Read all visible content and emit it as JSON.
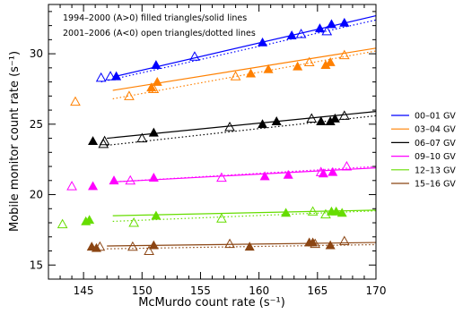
{
  "chart_data": {
    "type": "scatter",
    "xlabel": "McMurdo count rate (s⁻¹)",
    "ylabel": "Mobile monitor count rate (s⁻¹)",
    "xlim": [
      142,
      170
    ],
    "ylim": [
      14,
      33.5
    ],
    "xticks": [
      145,
      150,
      155,
      160,
      165,
      170
    ],
    "yticks": [
      15,
      20,
      25,
      30
    ],
    "grid": false,
    "legend_position": "right",
    "annotations": [
      "1994–2000 (A>0) filled triangles/solid lines",
      "2001–2006 (A<0) open triangles/dotted lines"
    ],
    "series": [
      {
        "name": "00–01 GV",
        "color": "#0000ff",
        "filled": [
          [
            147.8,
            28.4
          ],
          [
            151.2,
            29.2
          ],
          [
            160.3,
            30.8
          ],
          [
            162.8,
            31.3
          ],
          [
            165.2,
            31.8
          ],
          [
            166.2,
            32.1
          ],
          [
            167.3,
            32.2
          ]
        ],
        "open": [
          [
            146.5,
            28.3
          ],
          [
            147.3,
            28.4
          ],
          [
            154.5,
            29.8
          ],
          [
            163.6,
            31.4
          ],
          [
            165.8,
            31.6
          ]
        ],
        "solid_line": [
          [
            147.5,
            28.35
          ],
          [
            170,
            32.7
          ]
        ],
        "dotted_line": [
          [
            146.5,
            28.0
          ],
          [
            170,
            32.4
          ]
        ]
      },
      {
        "name": "03–04 GV",
        "color": "#ff8000",
        "filled": [
          [
            150.8,
            27.6
          ],
          [
            151.3,
            28.0
          ],
          [
            159.3,
            28.6
          ],
          [
            160.8,
            28.9
          ],
          [
            163.3,
            29.1
          ],
          [
            165.7,
            29.2
          ],
          [
            166.1,
            29.4
          ]
        ],
        "open": [
          [
            144.3,
            26.6
          ],
          [
            148.9,
            27.0
          ],
          [
            151.0,
            27.5
          ],
          [
            158.0,
            28.4
          ],
          [
            164.3,
            29.4
          ],
          [
            167.3,
            29.9
          ]
        ],
        "solid_line": [
          [
            147.5,
            27.4
          ],
          [
            170,
            30.4
          ]
        ],
        "dotted_line": [
          [
            147.5,
            26.8
          ],
          [
            170,
            30.2
          ]
        ]
      },
      {
        "name": "06–07 GV",
        "color": "#000000",
        "filled": [
          [
            145.8,
            23.8
          ],
          [
            151.0,
            24.4
          ],
          [
            160.3,
            25.0
          ],
          [
            161.5,
            25.2
          ],
          [
            165.3,
            25.2
          ],
          [
            166.1,
            25.2
          ],
          [
            166.5,
            25.4
          ]
        ],
        "open": [
          [
            146.7,
            23.6
          ],
          [
            146.8,
            23.8
          ],
          [
            150.0,
            24.0
          ],
          [
            157.5,
            24.8
          ],
          [
            164.5,
            25.4
          ],
          [
            167.3,
            25.6
          ]
        ],
        "solid_line": [
          [
            147.0,
            24.0
          ],
          [
            170,
            25.9
          ]
        ],
        "dotted_line": [
          [
            147.0,
            23.5
          ],
          [
            170,
            25.6
          ]
        ]
      },
      {
        "name": "09–10 GV",
        "color": "#ff00ff",
        "filled": [
          [
            145.8,
            20.6
          ],
          [
            147.6,
            21.0
          ],
          [
            151.0,
            21.2
          ],
          [
            160.5,
            21.3
          ],
          [
            162.5,
            21.4
          ],
          [
            165.5,
            21.5
          ],
          [
            166.3,
            21.6
          ]
        ],
        "open": [
          [
            144.0,
            20.6
          ],
          [
            149.0,
            21.0
          ],
          [
            156.8,
            21.2
          ],
          [
            165.3,
            21.6
          ],
          [
            167.5,
            22.0
          ]
        ],
        "solid_line": [
          [
            147.5,
            20.9
          ],
          [
            170,
            21.9
          ]
        ],
        "dotted_line": [
          [
            147.5,
            20.9
          ],
          [
            170,
            22.0
          ]
        ]
      },
      {
        "name": "12–13 GV",
        "color": "#66dd00",
        "filled": [
          [
            145.2,
            18.1
          ],
          [
            145.5,
            18.2
          ],
          [
            151.2,
            18.5
          ],
          [
            162.3,
            18.7
          ],
          [
            166.2,
            18.8
          ],
          [
            166.6,
            18.8
          ],
          [
            167.1,
            18.7
          ]
        ],
        "open": [
          [
            143.2,
            17.9
          ],
          [
            149.3,
            18.0
          ],
          [
            156.8,
            18.3
          ],
          [
            164.6,
            18.8
          ],
          [
            165.7,
            18.6
          ]
        ],
        "solid_line": [
          [
            147.5,
            18.5
          ],
          [
            170,
            18.9
          ]
        ],
        "dotted_line": [
          [
            147.5,
            18.1
          ],
          [
            170,
            18.85
          ]
        ]
      },
      {
        "name": "15–16 GV",
        "color": "#8b4513",
        "filled": [
          [
            145.7,
            16.3
          ],
          [
            146.1,
            16.2
          ],
          [
            151.0,
            16.4
          ],
          [
            159.2,
            16.3
          ],
          [
            164.3,
            16.6
          ],
          [
            164.6,
            16.6
          ],
          [
            166.1,
            16.4
          ]
        ],
        "open": [
          [
            146.4,
            16.3
          ],
          [
            149.2,
            16.3
          ],
          [
            150.6,
            16.0
          ],
          [
            157.5,
            16.5
          ],
          [
            164.8,
            16.5
          ],
          [
            167.3,
            16.7
          ]
        ],
        "solid_line": [
          [
            147.0,
            16.35
          ],
          [
            170,
            16.6
          ]
        ],
        "dotted_line": [
          [
            147.0,
            16.15
          ],
          [
            170,
            16.45
          ]
        ]
      }
    ]
  }
}
